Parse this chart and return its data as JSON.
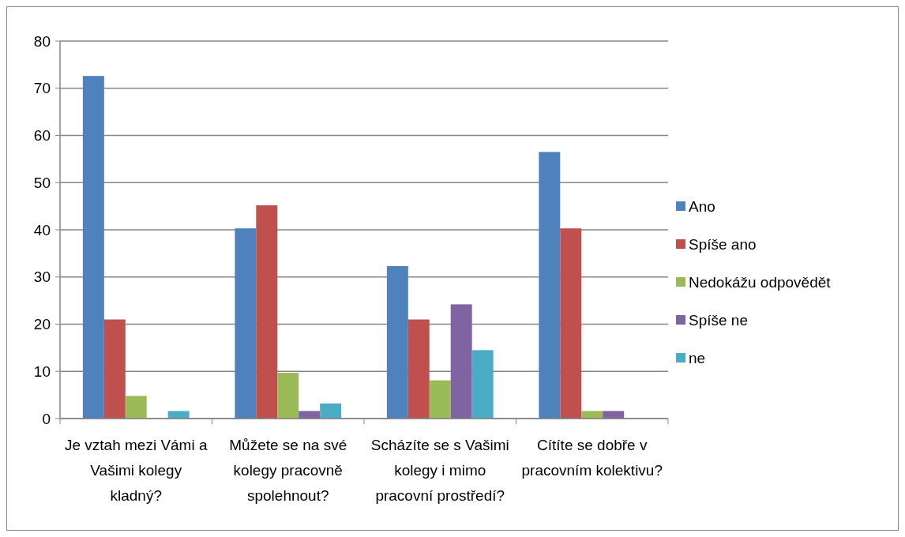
{
  "chart_data": {
    "type": "bar",
    "categories": [
      "Je vztah mezi Vámi a Vašimi kolegy kladný?",
      "Můžete se na své kolegy pracovně spolehnout?",
      "Scházíte se s Vašimi kolegy i mimo pracovní prostředí?",
      "Cítíte se dobře v pracovním kolektivu?"
    ],
    "series": [
      {
        "name": "Ano",
        "color": "#4f81bd",
        "values": [
          72.6,
          40.3,
          32.3,
          56.5
        ]
      },
      {
        "name": "Spíše ano",
        "color": "#c0504d",
        "values": [
          21,
          45.2,
          21,
          40.3
        ]
      },
      {
        "name": "Nedokážu odpovědět",
        "color": "#9bbb59",
        "values": [
          4.8,
          9.7,
          8.1,
          1.6
        ]
      },
      {
        "name": "Spíše ne",
        "color": "#8064a2",
        "values": [
          0,
          1.6,
          24.2,
          1.6
        ]
      },
      {
        "name": "ne",
        "color": "#4bacc6",
        "values": [
          1.6,
          3.2,
          14.5,
          0
        ]
      }
    ],
    "ylim": [
      0,
      80
    ],
    "yticks": [
      0,
      10,
      20,
      30,
      40,
      50,
      60,
      70,
      80
    ],
    "grid": "y",
    "legend": "right"
  }
}
